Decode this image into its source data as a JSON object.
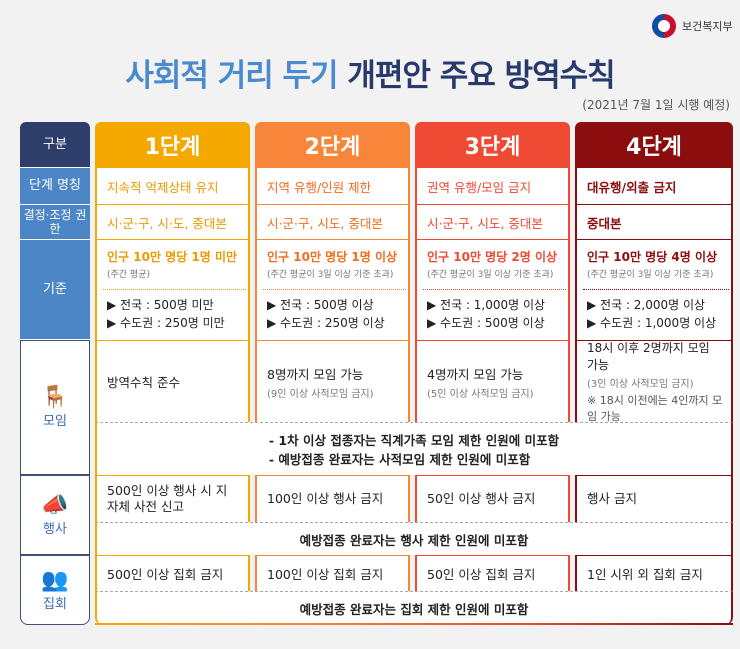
{
  "org": "보건복지부",
  "title": {
    "part1": "사회적 거리 두기",
    "part2": "개편안 주요 방역수칙"
  },
  "effective_date": "(2021년 7월 1일 시행 예정)",
  "colors": {
    "stage1": "#f5a800",
    "stage2": "#f7863a",
    "stage3": "#ee4a34",
    "stage4": "#8b0d0d",
    "navy": "#2d3e6a",
    "blue": "#4d86c6"
  },
  "row_headers": {
    "category": "구분",
    "name": "단계 명칭",
    "authority": "결정·조정 권한",
    "criteria": "기준",
    "gathering": "모임",
    "event": "행사",
    "rally": "집회"
  },
  "row_icons": {
    "gathering": "meeting-people-icon",
    "event": "megaphone-icon",
    "rally": "crowd-icon"
  },
  "stages": [
    {
      "label": "1단계",
      "name": "지속적 억제상태 유지",
      "authority": "시·군·구, 시·도, 중대본",
      "criteria_main": "인구 10만 명당 1명 미만",
      "criteria_sub": "(주간 평균)",
      "national": "▶ 전국 : 500명 미만",
      "capital": "▶ 수도권 : 250명 미만",
      "gathering": "방역수칙 준수",
      "gathering_sub": "",
      "gathering_note": "",
      "event": "500인 이상 행사 시 지자체 사전 신고",
      "rally": "500인 이상 집회 금지"
    },
    {
      "label": "2단계",
      "name": "지역 유행/인원 제한",
      "authority": "시·군·구, 시도, 중대본",
      "criteria_main": "인구 10만 명당 1명 이상",
      "criteria_sub": "(주간 평균이 3일 이상 기준 초과)",
      "national": "▶ 전국 : 500명 이상",
      "capital": "▶ 수도권 : 250명 이상",
      "gathering": "8명까지 모임 가능",
      "gathering_sub": "(9인 이상 사적모임 금지)",
      "gathering_note": "",
      "event": "100인 이상 행사 금지",
      "rally": "100인 이상 집회 금지"
    },
    {
      "label": "3단계",
      "name": "권역 유행/모임 금지",
      "authority": "시·군·구, 시도, 중대본",
      "criteria_main": "인구 10만 명당 2명 이상",
      "criteria_sub": "(주간 평균이 3일 이상 기준 초과)",
      "national": "▶ 전국 : 1,000명 이상",
      "capital": "▶ 수도권 : 500명 이상",
      "gathering": "4명까지 모임 가능",
      "gathering_sub": "(5인 이상 사적모임 금지)",
      "gathering_note": "",
      "event": "50인 이상 행사 금지",
      "rally": "50인 이상 집회 금지"
    },
    {
      "label": "4단계",
      "name": "대유행/외출 금지",
      "authority": "중대본",
      "criteria_main": "인구 10만 명당 4명 이상",
      "criteria_sub": "(주간 평균이 3일 이상 기준 초과)",
      "national": "▶ 전국 : 2,000명 이상",
      "capital": "▶ 수도권 : 1,000명 이상",
      "gathering": "18시 이후 2명까지 모임 가능",
      "gathering_sub": "(3인 이상 사적모임 금지)",
      "gathering_note": "※ 18시 이전에는 4인까지 모임 가능",
      "event": "행사 금지",
      "rally": "1인 시위 외 집회 금지"
    }
  ],
  "notes": {
    "gathering": [
      "- 1차 이상 접종자는 직계가족 모임 제한 인원에 미포함",
      "- 예방접종 완료자는 사적모임 제한 인원에 미포함"
    ],
    "event": "예방접종 완료자는 행사 제한 인원에 미포함",
    "rally": "예방접종 완료자는 집회 제한 인원에 미포함"
  }
}
